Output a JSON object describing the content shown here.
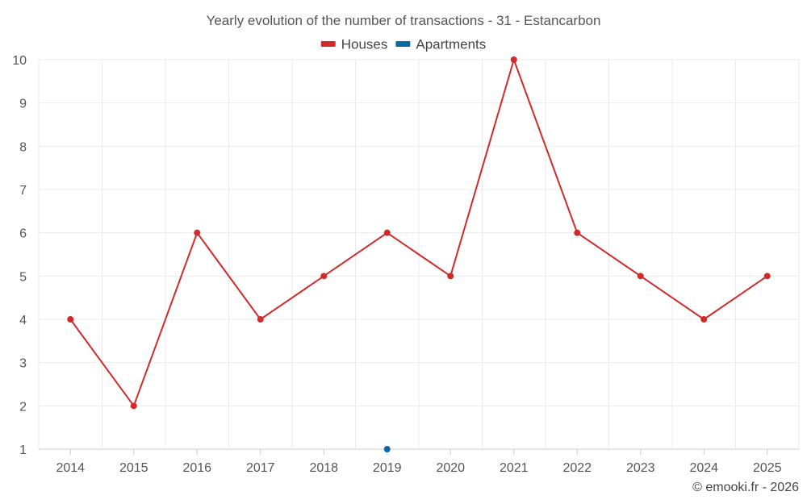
{
  "chart_data": {
    "type": "line",
    "title": "Yearly evolution of the number of transactions - 31 - Estancarbon",
    "x": [
      "2014",
      "2015",
      "2016",
      "2017",
      "2018",
      "2019",
      "2020",
      "2021",
      "2022",
      "2023",
      "2024",
      "2025"
    ],
    "ylim": [
      1,
      10
    ],
    "yticks": [
      1,
      2,
      3,
      4,
      5,
      6,
      7,
      8,
      9,
      10
    ],
    "grid": true,
    "legend_position": "top-center",
    "series": [
      {
        "name": "Houses",
        "color": "#d22a2a",
        "values": [
          4,
          2,
          6,
          4,
          5,
          6,
          5,
          10,
          6,
          5,
          4,
          5
        ]
      },
      {
        "name": "Apartments",
        "color": "#0b6aa0",
        "values": [
          null,
          null,
          null,
          null,
          null,
          1,
          null,
          null,
          null,
          null,
          null,
          null
        ]
      }
    ],
    "xlabel": "",
    "ylabel": ""
  },
  "credit": "© emooki.fr - 2026"
}
